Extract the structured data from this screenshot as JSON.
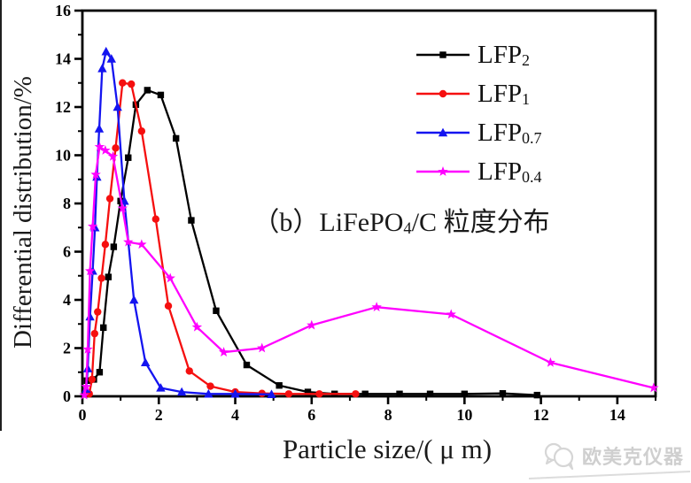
{
  "figure": {
    "y_axis_label": "Differential distribution/%",
    "x_axis_label": "Particle size/( μ m)",
    "annotation": {
      "pre": "（b）LiFePO",
      "sub": "4",
      "post": "/C 粒度分布"
    }
  },
  "watermark": {
    "text": "欧美克仪器",
    "logo": "omec-speech-bubbles-logo"
  },
  "colors": {
    "axis": "#000000",
    "lfp2": "#000000",
    "lfp1": "#f50f0f",
    "lfp07": "#1414f0",
    "lfp04": "#ff00ff",
    "watermark": "#cfcfcf"
  },
  "chart_data": {
    "type": "line",
    "title": "（b）LiFePO4/C 粒度分布",
    "xlabel": "Particle size/( μ m)",
    "ylabel": "Differential distribution/%",
    "xlim": [
      0,
      15
    ],
    "ylim": [
      0,
      16
    ],
    "x_major_ticks": [
      0,
      2,
      4,
      6,
      8,
      10,
      12,
      14
    ],
    "y_major_ticks": [
      0,
      2,
      4,
      6,
      8,
      10,
      12,
      14,
      16
    ],
    "minor_tick_interval": 1,
    "grid": false,
    "legend_position": "upper-right-inside",
    "series": [
      {
        "label": "LFP2",
        "label_base": "LFP",
        "label_sub": "2",
        "color": "#000000",
        "marker": "square",
        "points": [
          [
            0.12,
            0.65
          ],
          [
            0.3,
            0.7
          ],
          [
            0.45,
            1.0
          ],
          [
            0.55,
            2.85
          ],
          [
            0.68,
            4.95
          ],
          [
            0.82,
            6.2
          ],
          [
            1.0,
            8.1
          ],
          [
            1.2,
            9.9
          ],
          [
            1.4,
            12.1
          ],
          [
            1.7,
            12.7
          ],
          [
            2.05,
            12.5
          ],
          [
            2.45,
            10.7
          ],
          [
            2.85,
            7.3
          ],
          [
            3.5,
            3.55
          ],
          [
            4.3,
            1.3
          ],
          [
            5.15,
            0.45
          ],
          [
            5.9,
            0.18
          ],
          [
            6.6,
            0.1
          ],
          [
            7.4,
            0.1
          ],
          [
            8.3,
            0.1
          ],
          [
            9.1,
            0.1
          ],
          [
            10.0,
            0.1
          ],
          [
            11.0,
            0.12
          ],
          [
            11.9,
            0.05
          ]
        ]
      },
      {
        "label": "LFP1",
        "label_base": "LFP",
        "label_sub": "1",
        "color": "#f50f0f",
        "marker": "circle",
        "points": [
          [
            0.18,
            0.1
          ],
          [
            0.25,
            0.7
          ],
          [
            0.32,
            2.6
          ],
          [
            0.4,
            3.5
          ],
          [
            0.5,
            4.9
          ],
          [
            0.6,
            6.3
          ],
          [
            0.72,
            8.2
          ],
          [
            0.87,
            10.3
          ],
          [
            1.05,
            13.0
          ],
          [
            1.28,
            12.95
          ],
          [
            1.55,
            11.0
          ],
          [
            1.92,
            7.35
          ],
          [
            2.25,
            3.75
          ],
          [
            2.8,
            1.05
          ],
          [
            3.35,
            0.42
          ],
          [
            4.0,
            0.18
          ],
          [
            4.7,
            0.12
          ],
          [
            5.4,
            0.1
          ],
          [
            6.2,
            0.1
          ],
          [
            7.15,
            0.1
          ]
        ]
      },
      {
        "label": "LFP0.7",
        "label_base": "LFP",
        "label_sub": "0.7",
        "color": "#1414f0",
        "marker": "triangle",
        "points": [
          [
            0.1,
            0.3
          ],
          [
            0.14,
            1.15
          ],
          [
            0.2,
            3.3
          ],
          [
            0.27,
            5.2
          ],
          [
            0.33,
            7.0
          ],
          [
            0.38,
            9.1
          ],
          [
            0.44,
            11.1
          ],
          [
            0.52,
            13.6
          ],
          [
            0.62,
            14.3
          ],
          [
            0.76,
            14.0
          ],
          [
            0.92,
            12.0
          ],
          [
            1.1,
            8.1
          ],
          [
            1.35,
            4.0
          ],
          [
            1.65,
            1.4
          ],
          [
            2.05,
            0.35
          ],
          [
            2.6,
            0.18
          ],
          [
            3.3,
            0.1
          ],
          [
            4.0,
            0.1
          ],
          [
            4.95,
            0.08
          ]
        ]
      },
      {
        "label": "LFP0.4",
        "label_base": "LFP",
        "label_sub": "0.4",
        "color": "#ff00ff",
        "marker": "star",
        "points": [
          [
            0.05,
            0.05
          ],
          [
            0.1,
            0.4
          ],
          [
            0.14,
            1.95
          ],
          [
            0.2,
            5.2
          ],
          [
            0.27,
            7.05
          ],
          [
            0.35,
            9.2
          ],
          [
            0.45,
            10.35
          ],
          [
            0.6,
            10.2
          ],
          [
            0.8,
            9.95
          ],
          [
            1.05,
            7.8
          ],
          [
            1.2,
            6.4
          ],
          [
            1.55,
            6.3
          ],
          [
            2.3,
            4.9
          ],
          [
            3.0,
            2.87
          ],
          [
            3.7,
            1.83
          ],
          [
            4.7,
            2.0
          ],
          [
            6.0,
            2.95
          ],
          [
            7.7,
            3.7
          ],
          [
            9.65,
            3.4
          ],
          [
            12.25,
            1.4
          ],
          [
            14.95,
            0.35
          ]
        ]
      }
    ]
  }
}
